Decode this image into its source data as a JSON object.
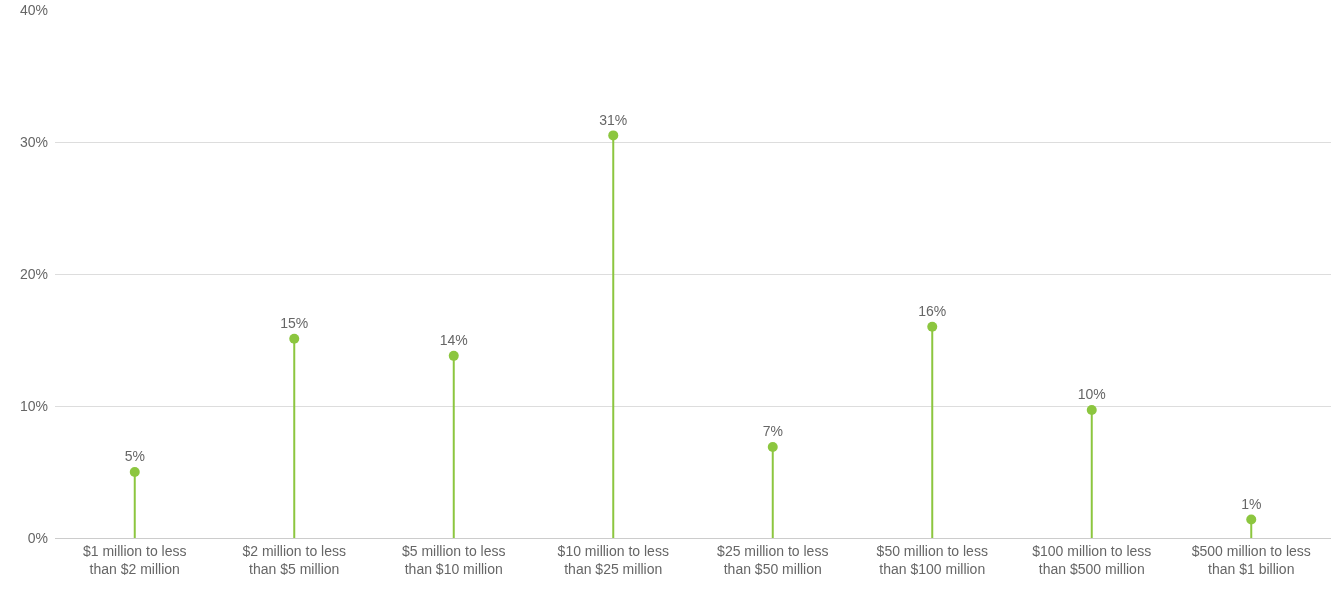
{
  "chart_data": {
    "type": "lollipop",
    "categories": [
      "$1 million to less than $2 million",
      "$2 million to less than $5 million",
      "$5 million to less than $10 million",
      "$10 million to less than $25 million",
      "$25 million to less than $50 million",
      "$50 million to less than $100 million",
      "$100 million to less than $500 million",
      "$500 million to less than $1 billion"
    ],
    "values": [
      5.0,
      15.1,
      13.8,
      30.5,
      6.9,
      16.0,
      9.7,
      1.4
    ],
    "value_labels": [
      "5%",
      "15%",
      "14%",
      "31%",
      "7%",
      "16%",
      "10%",
      "1%"
    ],
    "color": "#8cc63f",
    "ylim": [
      0,
      40
    ],
    "yticks": [
      {
        "value": 0,
        "label": "0%"
      },
      {
        "value": 10,
        "label": "10%"
      },
      {
        "value": 20,
        "label": "20%"
      },
      {
        "value": 30,
        "label": "30%"
      },
      {
        "value": 40,
        "label": "40%"
      }
    ],
    "grid": "y",
    "marker": "circle"
  }
}
